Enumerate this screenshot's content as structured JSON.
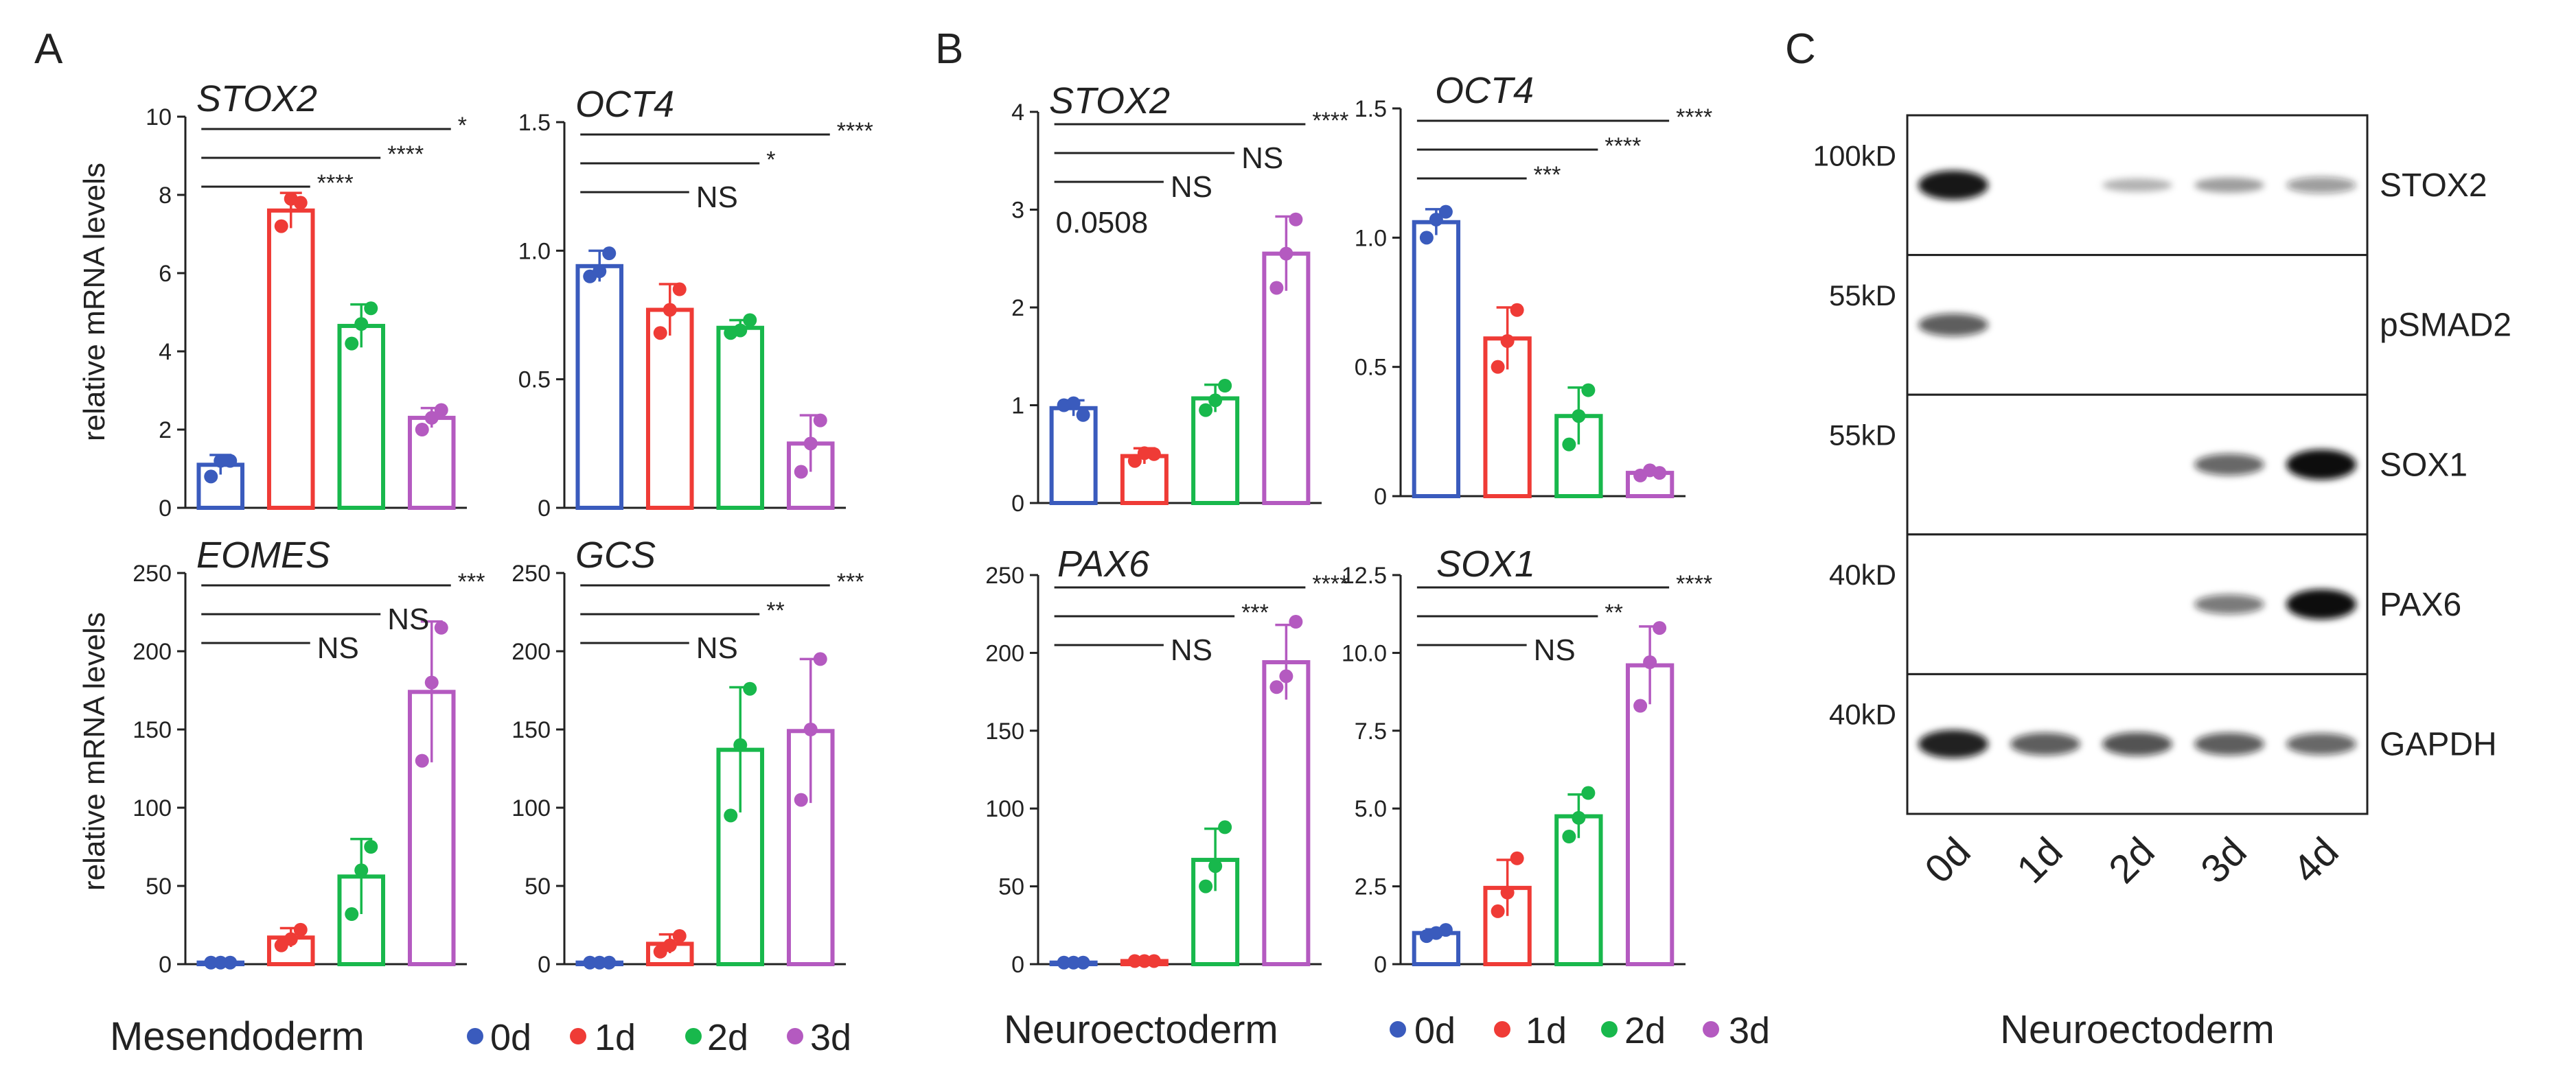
{
  "colors": {
    "d0": "#3a5bbd",
    "d1": "#ef3b36",
    "d2": "#18b84c",
    "d3": "#b45ac0",
    "ink": "#222222"
  },
  "panel_letters": {
    "a": "A",
    "b": "B",
    "c": "C"
  },
  "ylabel": "relative mRNA levels",
  "legends": {
    "a": {
      "title": "Mesendoderm",
      "items": [
        "0d",
        "1d",
        "2d",
        "3d"
      ]
    },
    "b": {
      "title": "Neuroectoderm",
      "items": [
        "0d",
        "1d",
        "2d",
        "3d"
      ]
    }
  },
  "chart_data": [
    {
      "id": "a_stox2",
      "type": "bar",
      "title": "STOX2",
      "ylabel": "relative mRNA levels",
      "categories": [
        "0d",
        "1d",
        "2d",
        "3d"
      ],
      "values": [
        1.1,
        7.6,
        4.65,
        2.3
      ],
      "errors": [
        0.25,
        0.45,
        0.55,
        0.25
      ],
      "points": [
        [
          0.8,
          1.2,
          1.2
        ],
        [
          7.2,
          7.8,
          7.9
        ],
        [
          4.2,
          5.1,
          4.7
        ],
        [
          2.0,
          2.5,
          2.3
        ]
      ],
      "ylim": [
        0,
        10
      ],
      "yticks": [
        "0",
        "2",
        "4",
        "6",
        "8",
        "10"
      ],
      "sig": [
        {
          "label": "*",
          "to": 3
        },
        {
          "label": "****",
          "to": 2
        },
        {
          "label": "****",
          "to": 1
        }
      ]
    },
    {
      "id": "a_oct4",
      "type": "bar",
      "title": "OCT4",
      "categories": [
        "0d",
        "1d",
        "2d",
        "3d"
      ],
      "values": [
        0.94,
        0.77,
        0.7,
        0.25
      ],
      "errors": [
        0.06,
        0.1,
        0.03,
        0.11
      ],
      "points": [
        [
          0.9,
          0.99,
          0.92
        ],
        [
          0.68,
          0.85,
          0.77
        ],
        [
          0.68,
          0.73,
          0.69
        ],
        [
          0.14,
          0.34,
          0.25
        ]
      ],
      "ylim": [
        0,
        1.5
      ],
      "yticks": [
        "0",
        "0.5",
        "1.0",
        "1.5"
      ],
      "sig": [
        {
          "label": "****",
          "to": 3
        },
        {
          "label": "*",
          "to": 2
        },
        {
          "label": "NS",
          "to": 1
        }
      ]
    },
    {
      "id": "a_eomes",
      "type": "bar",
      "title": "EOMES",
      "ylabel": "relative mRNA levels",
      "categories": [
        "0d",
        "1d",
        "2d",
        "3d"
      ],
      "values": [
        1,
        17,
        56,
        174
      ],
      "errors": [
        0.5,
        6,
        24,
        45
      ],
      "points": [
        [
          1,
          1,
          1
        ],
        [
          12,
          22,
          16
        ],
        [
          32,
          75,
          60
        ],
        [
          130,
          215,
          180
        ]
      ],
      "ylim": [
        0,
        250
      ],
      "yticks": [
        "0",
        "50",
        "100",
        "150",
        "200",
        "250"
      ],
      "sig": [
        {
          "label": "***",
          "to": 3
        },
        {
          "label": "NS",
          "to": 2
        },
        {
          "label": "NS",
          "to": 1
        }
      ]
    },
    {
      "id": "a_gcs",
      "type": "bar",
      "title": "GCS",
      "categories": [
        "0d",
        "1d",
        "2d",
        "3d"
      ],
      "values": [
        1,
        13,
        137,
        149
      ],
      "errors": [
        0.5,
        6,
        40,
        46
      ],
      "points": [
        [
          1,
          1,
          1
        ],
        [
          8,
          18,
          12
        ],
        [
          95,
          176,
          140
        ],
        [
          105,
          195,
          150
        ]
      ],
      "ylim": [
        0,
        250
      ],
      "yticks": [
        "0",
        "50",
        "100",
        "150",
        "200",
        "250"
      ],
      "sig": [
        {
          "label": "***",
          "to": 3
        },
        {
          "label": "**",
          "to": 2
        },
        {
          "label": "NS",
          "to": 1
        }
      ]
    },
    {
      "id": "b_stox2",
      "type": "bar",
      "title": "STOX2",
      "categories": [
        "0d",
        "1d",
        "2d",
        "3d"
      ],
      "values": [
        0.97,
        0.48,
        1.07,
        2.55
      ],
      "errors": [
        0.08,
        0.08,
        0.14,
        0.38
      ],
      "points": [
        [
          1.0,
          0.9,
          1.02
        ],
        [
          0.43,
          0.5,
          0.51
        ],
        [
          0.95,
          1.2,
          1.05
        ],
        [
          2.2,
          2.9,
          2.55
        ]
      ],
      "ylim": [
        0,
        4
      ],
      "yticks": [
        "0",
        "1",
        "2",
        "3",
        "4"
      ],
      "sig": [
        {
          "label": "****",
          "to": 3
        },
        {
          "label": "NS",
          "to": 2
        },
        {
          "label": "NS",
          "to": 1
        }
      ],
      "annotation": "0.0508"
    },
    {
      "id": "b_oct4",
      "type": "bar",
      "title": "OCT4",
      "categories": [
        "0d",
        "1d",
        "2d",
        "3d"
      ],
      "values": [
        1.06,
        0.61,
        0.31,
        0.09
      ],
      "errors": [
        0.05,
        0.12,
        0.11,
        0.01
      ],
      "points": [
        [
          1.0,
          1.1,
          1.07
        ],
        [
          0.5,
          0.72,
          0.6
        ],
        [
          0.2,
          0.41,
          0.31
        ],
        [
          0.08,
          0.09,
          0.1
        ]
      ],
      "ylim": [
        0,
        1.5
      ],
      "yticks": [
        "0",
        "0.5",
        "1.0",
        "1.5"
      ],
      "sig": [
        {
          "label": "****",
          "to": 3
        },
        {
          "label": "****",
          "to": 2
        },
        {
          "label": "***",
          "to": 1
        }
      ]
    },
    {
      "id": "b_pax6",
      "type": "bar",
      "title": "PAX6",
      "categories": [
        "0d",
        "1d",
        "2d",
        "3d"
      ],
      "values": [
        1,
        2,
        67,
        194
      ],
      "errors": [
        0.5,
        0.5,
        20,
        24
      ],
      "points": [
        [
          1,
          1,
          1
        ],
        [
          2,
          2,
          2
        ],
        [
          50,
          88,
          63
        ],
        [
          178,
          220,
          185
        ]
      ],
      "ylim": [
        0,
        250
      ],
      "yticks": [
        "0",
        "50",
        "100",
        "150",
        "200",
        "250"
      ],
      "sig": [
        {
          "label": "****",
          "to": 3
        },
        {
          "label": "***",
          "to": 2
        },
        {
          "label": "NS",
          "to": 1
        }
      ]
    },
    {
      "id": "b_sox1",
      "type": "bar",
      "title": "SOX1",
      "categories": [
        "0d",
        "1d",
        "2d",
        "3d"
      ],
      "values": [
        1.0,
        2.45,
        4.75,
        9.6
      ],
      "errors": [
        0.12,
        0.9,
        0.7,
        1.25
      ],
      "points": [
        [
          0.9,
          1.1,
          1.0
        ],
        [
          1.7,
          3.4,
          2.3
        ],
        [
          4.1,
          5.5,
          4.7
        ],
        [
          8.3,
          10.8,
          9.7
        ]
      ],
      "ylim": [
        0,
        12.5
      ],
      "yticks": [
        "0",
        "2.5",
        "5.0",
        "7.5",
        "10.0",
        "12.5"
      ],
      "sig": [
        {
          "label": "****",
          "to": 3
        },
        {
          "label": "**",
          "to": 2
        },
        {
          "label": "NS",
          "to": 1
        }
      ]
    }
  ],
  "western_blot": {
    "markers": [
      "100kD",
      "55kD",
      "55kD",
      "40kD",
      "40kD"
    ],
    "proteins": [
      "STOX2",
      "pSMAD2",
      "SOX1",
      "PAX6",
      "GAPDH"
    ],
    "lanes": [
      "0d",
      "1d",
      "2d",
      "3d",
      "4d"
    ],
    "intensity": [
      [
        0.95,
        0.0,
        0.12,
        0.22,
        0.28
      ],
      [
        0.6,
        0.0,
        0.0,
        0.0,
        0.0
      ],
      [
        0.0,
        0.0,
        0.0,
        0.55,
        1.0
      ],
      [
        0.0,
        0.0,
        0.0,
        0.45,
        1.0
      ],
      [
        0.9,
        0.6,
        0.65,
        0.6,
        0.55
      ]
    ],
    "xlabel": "Neuroectoderm"
  }
}
